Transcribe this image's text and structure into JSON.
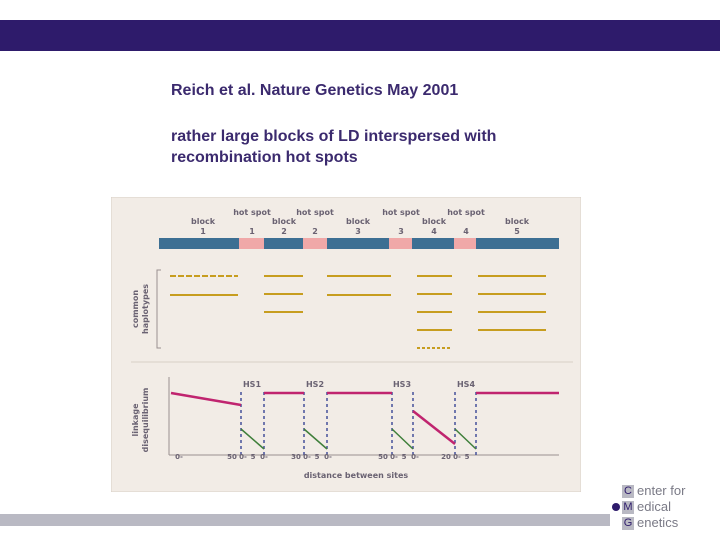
{
  "slide": {
    "title": "Reich et al. Nature Genetics May 2001",
    "subtitle_lines": [
      "rather large blocks of LD interspersed with",
      "recombination hot spots"
    ]
  },
  "figure": {
    "segment_labels": [
      {
        "line1": "block",
        "line2": "1"
      },
      {
        "line1": "hot spot",
        "line2": "1"
      },
      {
        "line1": "block",
        "line2": "2"
      },
      {
        "line1": "hot spot",
        "line2": "2"
      },
      {
        "line1": "block",
        "line2": "3"
      },
      {
        "line1": "hot spot",
        "line2": "3"
      },
      {
        "line1": "block",
        "line2": "4"
      },
      {
        "line1": "hot spot",
        "line2": "4"
      },
      {
        "line1": "block",
        "line2": "5"
      }
    ],
    "haplotype_axis_label": [
      "common",
      "haplotypes"
    ],
    "ld_axis_label": [
      "linkage",
      "disequilibrium"
    ],
    "hotspot_markers": [
      "HS1",
      "HS2",
      "HS3",
      "HS4"
    ],
    "distance_ticks": [
      {
        "text": "0-"
      },
      {
        "text": "50"
      },
      {
        "text": "0-"
      },
      {
        "text": "5"
      },
      {
        "text": "0-"
      },
      {
        "text": "30"
      },
      {
        "text": "0-"
      },
      {
        "text": "5"
      },
      {
        "text": "0-"
      },
      {
        "text": "50"
      },
      {
        "text": "0-"
      },
      {
        "text": "5"
      },
      {
        "text": "0-"
      },
      {
        "text": "20"
      },
      {
        "text": "0-"
      },
      {
        "text": "5"
      }
    ],
    "x_axis_title": "distance between sites",
    "colors": {
      "background": "#f2ece6",
      "block_bar": "#3d6f93",
      "hotspot": "#f0a8a8",
      "haplotype": "#c79d1f",
      "ld_high": "#c0246f",
      "ld_low": "#3f7f3a",
      "hotspot_dash": "#44509a"
    }
  },
  "logo": {
    "lines": [
      {
        "initial": "C",
        "rest": "enter for"
      },
      {
        "initial": "M",
        "rest": "edical"
      },
      {
        "initial": "G",
        "rest": "enetics"
      }
    ]
  }
}
